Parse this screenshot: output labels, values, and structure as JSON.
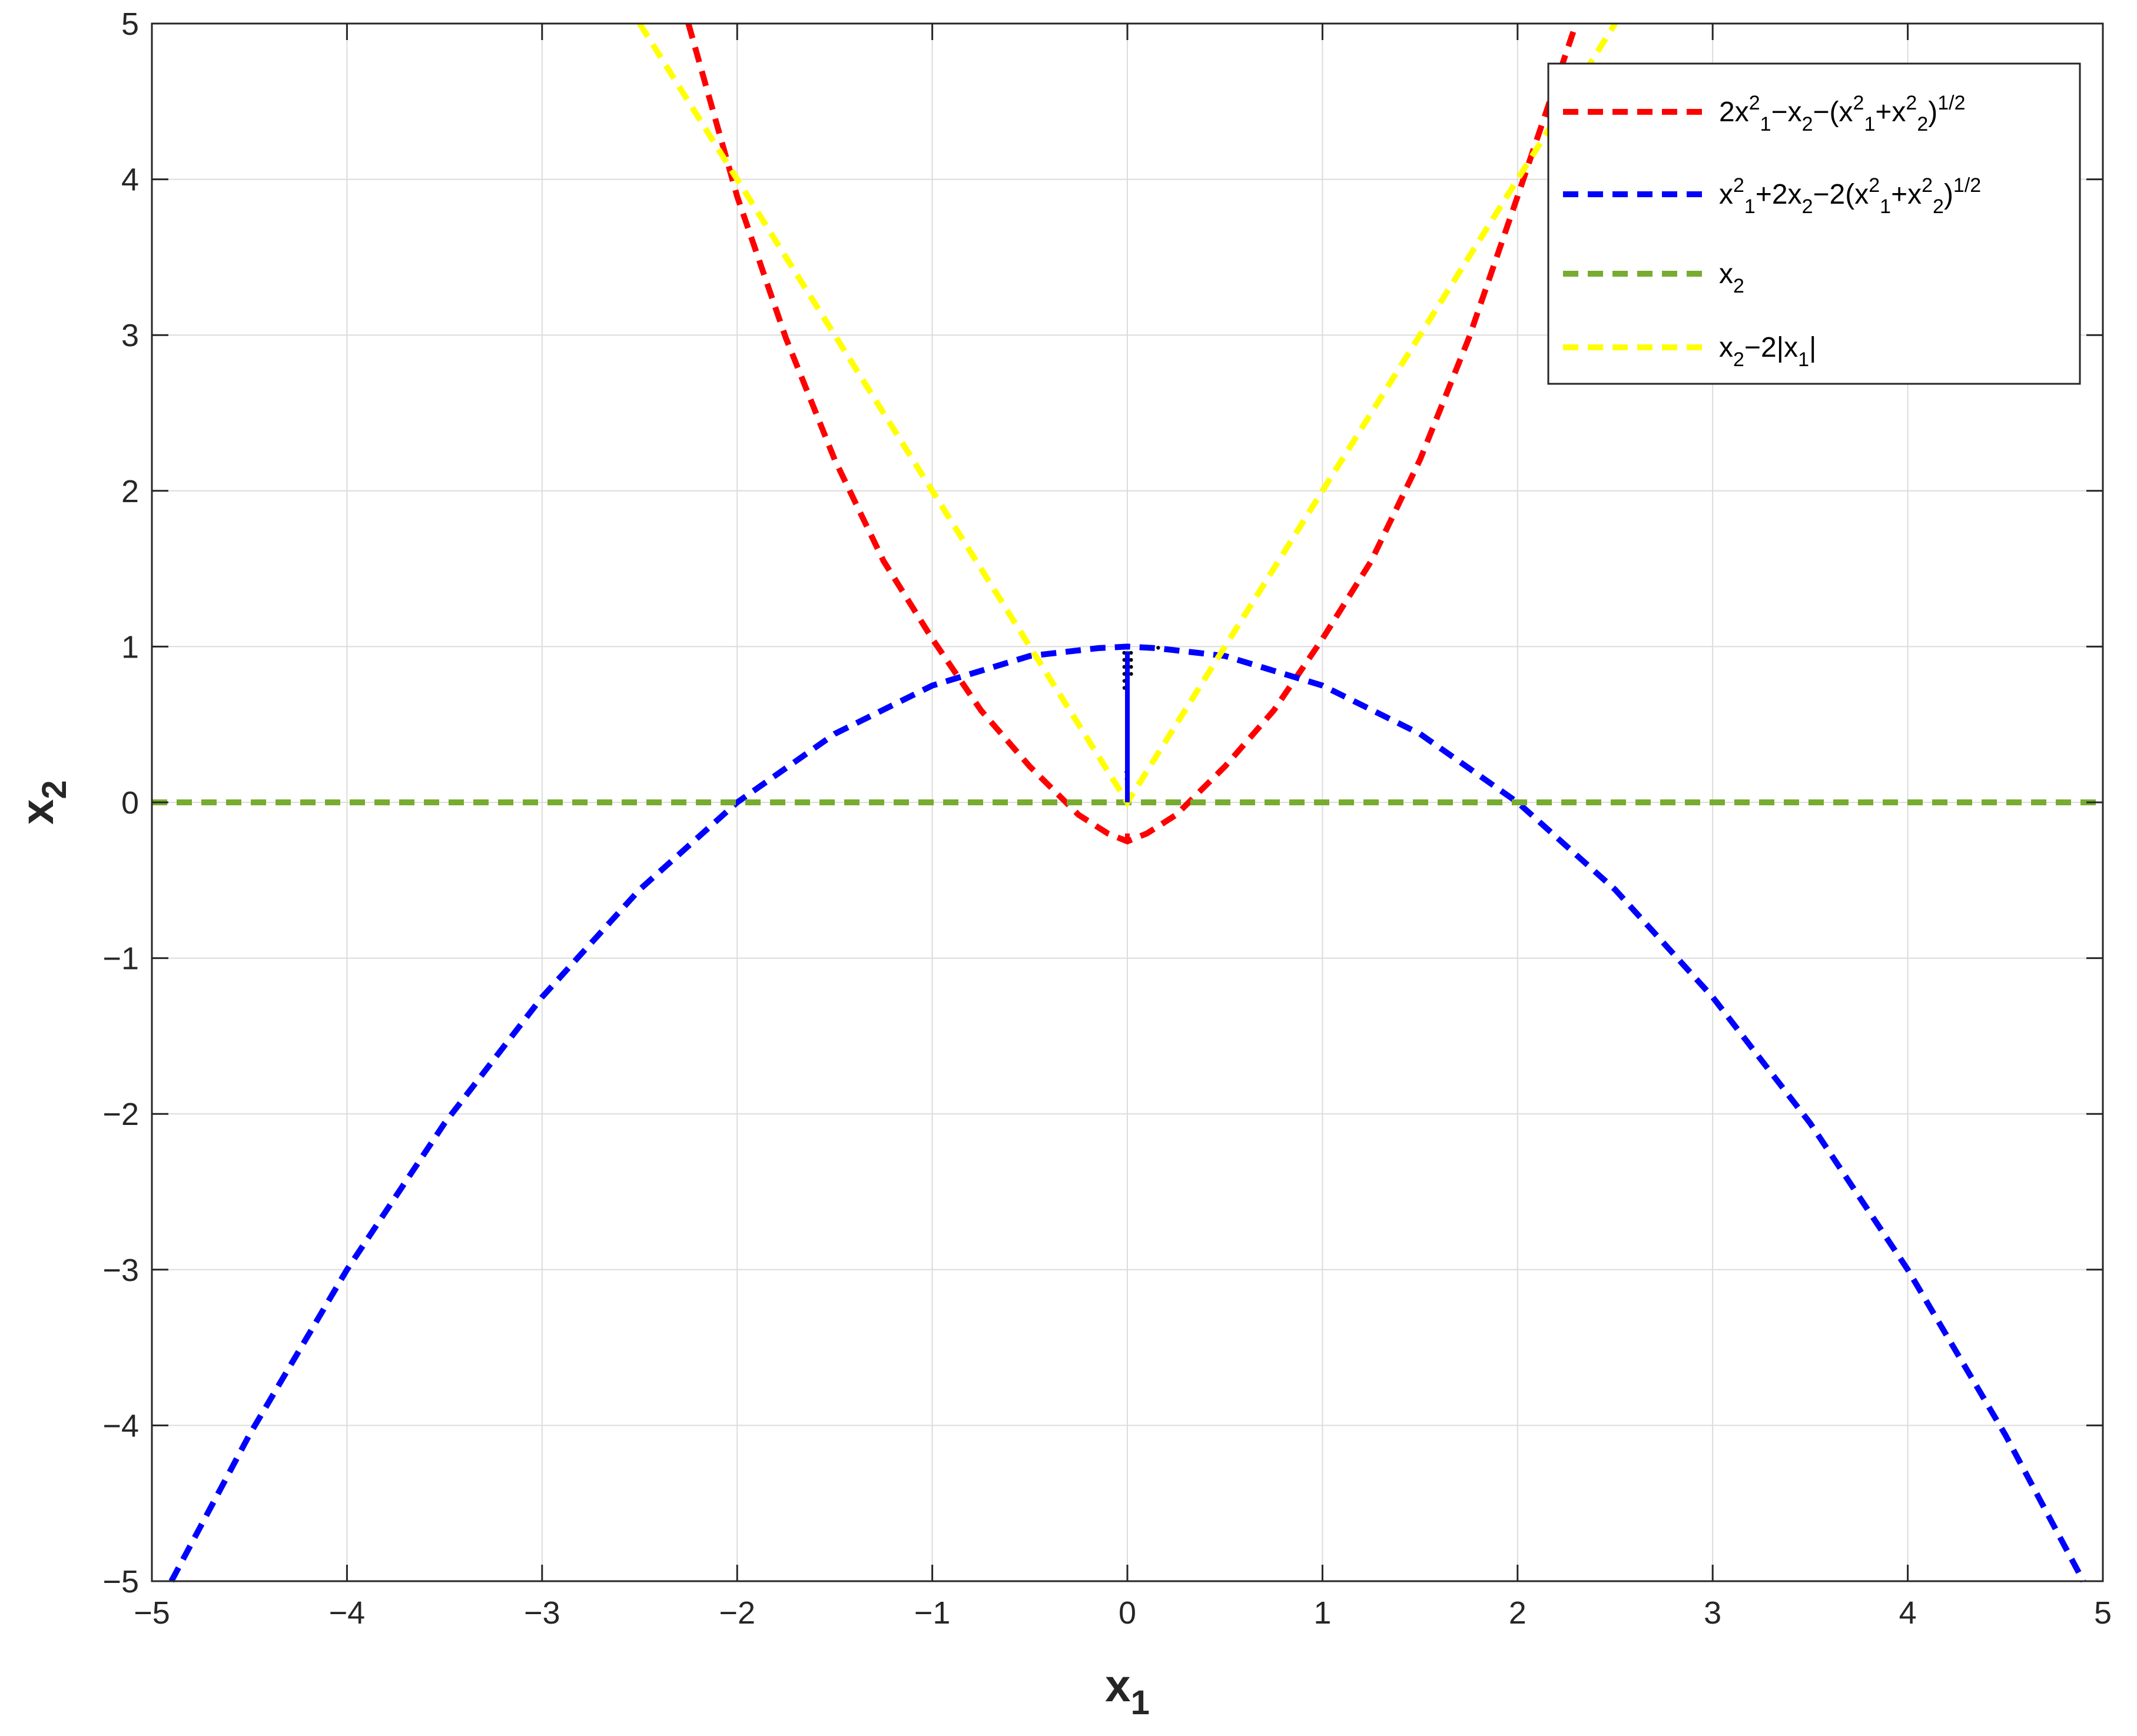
{
  "chart_data": {
    "type": "line",
    "xlabel": "x",
    "xlabel_sub": "1",
    "ylabel": "x",
    "ylabel_sub": "2",
    "xlim": [
      -5,
      5
    ],
    "ylim": [
      -5,
      5
    ],
    "x_ticks": [
      -5,
      -4,
      -3,
      -2,
      -1,
      0,
      1,
      2,
      3,
      4,
      5
    ],
    "y_ticks": [
      -5,
      -4,
      -3,
      -2,
      -1,
      0,
      1,
      2,
      3,
      4,
      5
    ],
    "x_tick_labels": [
      "−5",
      "−4",
      "−3",
      "−2",
      "−1",
      "0",
      "1",
      "2",
      "3",
      "4",
      "5"
    ],
    "y_tick_labels": [
      "−5",
      "−4",
      "−3",
      "−2",
      "−1",
      "0",
      "1",
      "2",
      "3",
      "4",
      "5"
    ],
    "grid": true,
    "legend_position": "top-right",
    "series": [
      {
        "label_parts": [
          [
            "2x",
            ""
          ],
          [
            "2",
            "sup"
          ],
          [
            "1",
            "sub"
          ],
          [
            "−x",
            ""
          ],
          [
            "2",
            "sub"
          ],
          [
            "−(x",
            ""
          ],
          [
            "2",
            "sup"
          ],
          [
            "1",
            "sub"
          ],
          [
            "+x",
            ""
          ],
          [
            "2",
            "sup"
          ],
          [
            "2",
            "sub"
          ],
          [
            ")",
            ""
          ],
          [
            "1/2",
            "sup"
          ]
        ],
        "color": "#ff0000",
        "style": "dashed",
        "points": [
          [
            -2.25,
            5.0
          ],
          [
            -2.0,
            3.89
          ],
          [
            -1.75,
            2.98
          ],
          [
            -1.5,
            2.2
          ],
          [
            -1.25,
            1.55
          ],
          [
            -1.0,
            1.05
          ],
          [
            -0.75,
            0.59
          ],
          [
            -0.5,
            0.23
          ],
          [
            -0.25,
            -0.08
          ],
          [
            -0.1,
            -0.2
          ],
          [
            0.0,
            -0.25
          ],
          [
            0.0,
            -0.25
          ],
          [
            0.1,
            -0.2
          ],
          [
            0.25,
            -0.08
          ],
          [
            0.5,
            0.23
          ],
          [
            0.75,
            0.59
          ],
          [
            1.0,
            1.05
          ],
          [
            1.25,
            1.55
          ],
          [
            1.5,
            2.2
          ],
          [
            1.75,
            2.98
          ],
          [
            2.0,
            3.89
          ],
          [
            2.3,
            5.0
          ]
        ],
        "extra_segments": [
          [
            [
              0.0,
              -0.25
            ],
            [
              0.0,
              -0.2
            ]
          ]
        ]
      },
      {
        "label_parts": [
          [
            "x",
            ""
          ],
          [
            "2",
            "sup"
          ],
          [
            "1",
            "sub"
          ],
          [
            "+2x",
            ""
          ],
          [
            "2",
            "sub"
          ],
          [
            "−2(x",
            ""
          ],
          [
            "2",
            "sup"
          ],
          [
            "1",
            "sub"
          ],
          [
            "+x",
            ""
          ],
          [
            "2",
            "sup"
          ],
          [
            "2",
            "sub"
          ],
          [
            ")",
            ""
          ],
          [
            "1/2",
            "sup"
          ]
        ],
        "color": "#0000ff",
        "style": "dashed",
        "points": [
          [
            -4.9,
            -5.0
          ],
          [
            -4.5,
            -4.06
          ],
          [
            -4.0,
            -3.0
          ],
          [
            -3.5,
            -2.06
          ],
          [
            -3.0,
            -1.25
          ],
          [
            -2.5,
            -0.56
          ],
          [
            -2.0,
            0.0
          ],
          [
            -1.5,
            0.44
          ],
          [
            -1.0,
            0.75
          ],
          [
            -0.5,
            0.94
          ],
          [
            -0.15,
            0.99
          ],
          [
            0.0,
            1.0
          ],
          [
            0.15,
            0.99
          ],
          [
            0.5,
            0.94
          ],
          [
            1.0,
            0.75
          ],
          [
            1.5,
            0.44
          ],
          [
            2.0,
            0.0
          ],
          [
            2.5,
            -0.56
          ],
          [
            3.0,
            -1.25
          ],
          [
            3.5,
            -2.06
          ],
          [
            4.0,
            -3.0
          ],
          [
            4.5,
            -4.06
          ],
          [
            4.9,
            -5.0
          ]
        ]
      },
      {
        "label_parts": [
          [
            "x",
            ""
          ],
          [
            "2",
            "sub"
          ]
        ],
        "color": "#77ac30",
        "style": "dashed",
        "points": [
          [
            -5.0,
            0.0
          ],
          [
            5.0,
            0.0
          ]
        ]
      },
      {
        "label_parts": [
          [
            "x",
            ""
          ],
          [
            "2",
            "sub"
          ],
          [
            "−2|x",
            ""
          ],
          [
            "1",
            "sub"
          ],
          [
            "|",
            ""
          ]
        ],
        "color": "#ffff00",
        "style": "dashed",
        "points": [
          [
            -2.5,
            5.0
          ],
          [
            -2.0,
            4.0
          ],
          [
            -1.5,
            3.0
          ],
          [
            -1.0,
            2.0
          ],
          [
            -0.5,
            1.0
          ],
          [
            0.0,
            0.0
          ],
          [
            0.5,
            1.0
          ],
          [
            1.0,
            2.0
          ],
          [
            1.5,
            3.0
          ],
          [
            2.0,
            4.0
          ],
          [
            2.5,
            5.0
          ]
        ]
      }
    ],
    "feasible_region": {
      "description_color": "#000000",
      "solid_segments": [
        {
          "color": "#0000ff",
          "points": [
            [
              0.0,
              0.0
            ],
            [
              0.0,
              0.97
            ]
          ]
        },
        {
          "color": "#ff0000",
          "points": [
            [
              0.0,
              -0.25
            ],
            [
              0.0,
              -0.2
            ]
          ]
        }
      ]
    }
  }
}
